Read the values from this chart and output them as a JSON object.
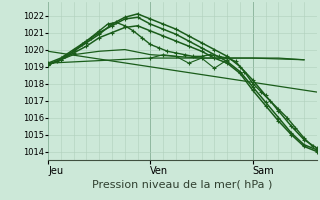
{
  "bg_color": "#cce8d8",
  "grid_color_major": "#90b8a0",
  "grid_color_minor": "#b0d0bc",
  "line_color": "#1a5c1a",
  "xlabel": "Pression niveau de la mer( hPa )",
  "xlabel_fontsize": 8,
  "ylim": [
    1013.5,
    1022.8
  ],
  "yticks": [
    1014,
    1015,
    1016,
    1017,
    1018,
    1019,
    1020,
    1021,
    1022
  ],
  "day_labels": [
    "Jeu",
    "Ven",
    "Sam"
  ],
  "day_positions": [
    0,
    24,
    48
  ],
  "total_hours": 63,
  "series": [
    {
      "x": [
        0,
        6,
        12,
        18,
        24,
        30,
        36,
        42,
        48,
        54,
        60
      ],
      "y": [
        1019.1,
        1019.7,
        1019.9,
        1020.0,
        1019.7,
        1019.6,
        1019.5,
        1019.5,
        1019.5,
        1019.5,
        1019.4
      ],
      "lw": 0.9,
      "markers": false
    },
    {
      "x": [
        0,
        63
      ],
      "y": [
        1019.9,
        1017.5
      ],
      "lw": 0.9,
      "markers": false
    },
    {
      "x": [
        0,
        24,
        36,
        48,
        60
      ],
      "y": [
        1019.2,
        1019.5,
        1019.5,
        1019.5,
        1019.4
      ],
      "lw": 0.9,
      "markers": false
    },
    {
      "x": [
        24,
        27,
        30,
        33,
        36,
        39,
        42
      ],
      "y": [
        1019.5,
        1019.7,
        1019.6,
        1019.2,
        1019.5,
        1018.9,
        1019.4
      ],
      "lw": 0.8,
      "markers": true
    },
    {
      "x": [
        0,
        2,
        4,
        6,
        8,
        10,
        12,
        14,
        16,
        18,
        20,
        22,
        24,
        26,
        28,
        30,
        32,
        34,
        36,
        38,
        40,
        42,
        44,
        46,
        48,
        50,
        52,
        54,
        56,
        58,
        60,
        62
      ],
      "y": [
        1019.1,
        1019.3,
        1019.6,
        1019.9,
        1020.3,
        1020.7,
        1021.1,
        1021.5,
        1021.6,
        1021.4,
        1021.1,
        1020.7,
        1020.3,
        1020.1,
        1019.9,
        1019.8,
        1019.7,
        1019.6,
        1019.6,
        1019.7,
        1019.6,
        1019.5,
        1019.3,
        1018.7,
        1018.0,
        1017.5,
        1017.0,
        1016.5,
        1016.0,
        1015.4,
        1014.8,
        1014.3
      ],
      "lw": 1.0,
      "markers": true
    },
    {
      "x": [
        0,
        3,
        6,
        9,
        12,
        15,
        18,
        21,
        24,
        27,
        30,
        33,
        36,
        39,
        42,
        45,
        48,
        51,
        54,
        57,
        60,
        63
      ],
      "y": [
        1019.1,
        1019.4,
        1019.9,
        1020.4,
        1020.9,
        1021.5,
        1021.9,
        1022.1,
        1021.8,
        1021.5,
        1021.2,
        1020.8,
        1020.4,
        1020.0,
        1019.6,
        1019.0,
        1018.2,
        1017.3,
        1016.4,
        1015.5,
        1014.7,
        1014.2
      ],
      "lw": 1.1,
      "markers": true
    },
    {
      "x": [
        0,
        3,
        6,
        9,
        12,
        15,
        18,
        21,
        24,
        27,
        30,
        33,
        36,
        39,
        42,
        45,
        48,
        51,
        54,
        57,
        60,
        63
      ],
      "y": [
        1019.2,
        1019.5,
        1020.0,
        1020.5,
        1021.0,
        1021.4,
        1021.8,
        1021.9,
        1021.5,
        1021.2,
        1020.9,
        1020.5,
        1020.1,
        1019.7,
        1019.3,
        1018.7,
        1017.8,
        1016.9,
        1016.0,
        1015.1,
        1014.4,
        1014.1
      ],
      "lw": 1.1,
      "markers": true
    },
    {
      "x": [
        0,
        3,
        6,
        9,
        12,
        15,
        18,
        21,
        24,
        27,
        30,
        33,
        36,
        39,
        42,
        45,
        48,
        51,
        54,
        57,
        60,
        63
      ],
      "y": [
        1019.1,
        1019.4,
        1019.8,
        1020.2,
        1020.7,
        1021.0,
        1021.3,
        1021.4,
        1021.1,
        1020.8,
        1020.5,
        1020.2,
        1019.9,
        1019.5,
        1019.2,
        1018.6,
        1017.6,
        1016.7,
        1015.8,
        1015.0,
        1014.3,
        1014.0
      ],
      "lw": 1.1,
      "markers": true
    }
  ]
}
